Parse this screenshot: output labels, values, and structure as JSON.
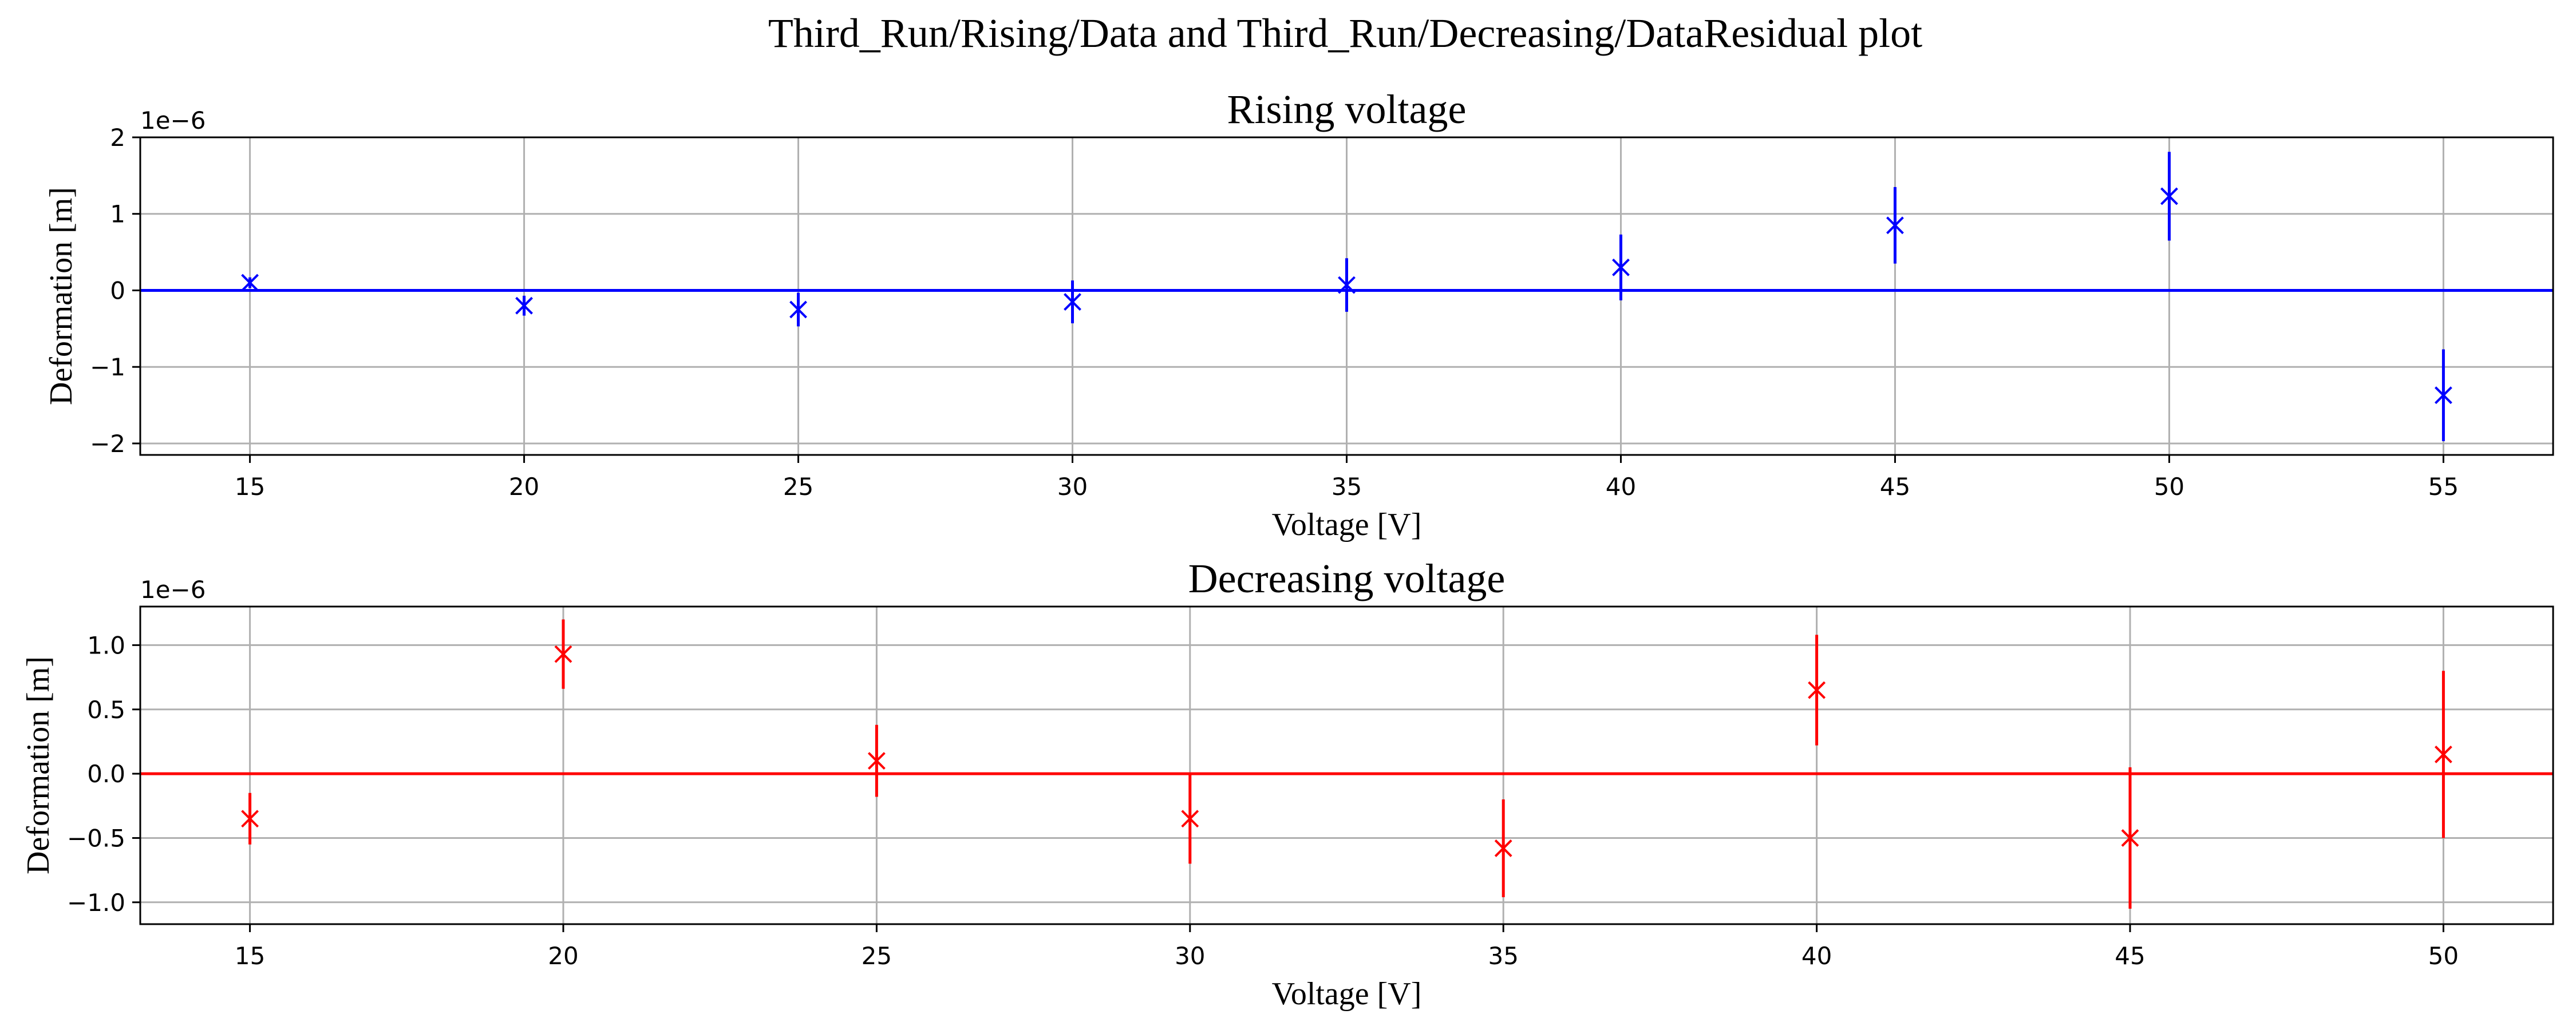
{
  "figure": {
    "suptitle": "Third_Run/Rising/Data and Third_Run/Decreasing/DataResidual plot"
  },
  "chart_data": [
    {
      "type": "scatter",
      "title": "Rising voltage",
      "xlabel": "Voltage [V]",
      "ylabel": "Deformation [m]",
      "y_scale_label": "1e−6",
      "xlim": [
        13,
        57
      ],
      "ylim": [
        -2.15,
        2.0
      ],
      "xticks": [
        15,
        20,
        25,
        30,
        35,
        40,
        45,
        50,
        55
      ],
      "yticks": [
        -2,
        -1,
        0,
        1,
        2
      ],
      "grid": true,
      "color": "#0000ff",
      "reference_line": 0,
      "points": [
        {
          "x": 15,
          "y": 0.1,
          "err": 0.07
        },
        {
          "x": 20,
          "y": -0.2,
          "err": 0.13
        },
        {
          "x": 25,
          "y": -0.25,
          "err": 0.22
        },
        {
          "x": 30,
          "y": -0.15,
          "err": 0.28
        },
        {
          "x": 35,
          "y": 0.07,
          "err": 0.35
        },
        {
          "x": 40,
          "y": 0.3,
          "err": 0.43
        },
        {
          "x": 45,
          "y": 0.85,
          "err": 0.5
        },
        {
          "x": 50,
          "y": 1.23,
          "err": 0.58
        },
        {
          "x": 55,
          "y": -1.37,
          "err": 0.6
        }
      ]
    },
    {
      "type": "scatter",
      "title": "Decreasing voltage",
      "xlabel": "Voltage [V]",
      "ylabel": "Deformation [m]",
      "y_scale_label": "1e−6",
      "xlim": [
        13.25,
        51.75
      ],
      "ylim": [
        -1.17,
        1.3
      ],
      "xticks": [
        15,
        20,
        25,
        30,
        35,
        40,
        45,
        50
      ],
      "yticks": [
        -1.0,
        -0.5,
        0.0,
        0.5,
        1.0
      ],
      "ytick_labels": [
        "−1.0",
        "−0.5",
        "0.0",
        "0.5",
        "1.0"
      ],
      "grid": true,
      "color": "#ff0000",
      "reference_line": 0,
      "points": [
        {
          "x": 15,
          "y": -0.35,
          "err": 0.2
        },
        {
          "x": 20,
          "y": 0.93,
          "err": 0.27
        },
        {
          "x": 25,
          "y": 0.1,
          "err": 0.28
        },
        {
          "x": 30,
          "y": -0.35,
          "err": 0.35
        },
        {
          "x": 35,
          "y": -0.58,
          "err": 0.38
        },
        {
          "x": 40,
          "y": 0.65,
          "err": 0.43
        },
        {
          "x": 45,
          "y": -0.5,
          "err": 0.55
        },
        {
          "x": 50,
          "y": 0.15,
          "err": 0.65
        }
      ]
    }
  ]
}
